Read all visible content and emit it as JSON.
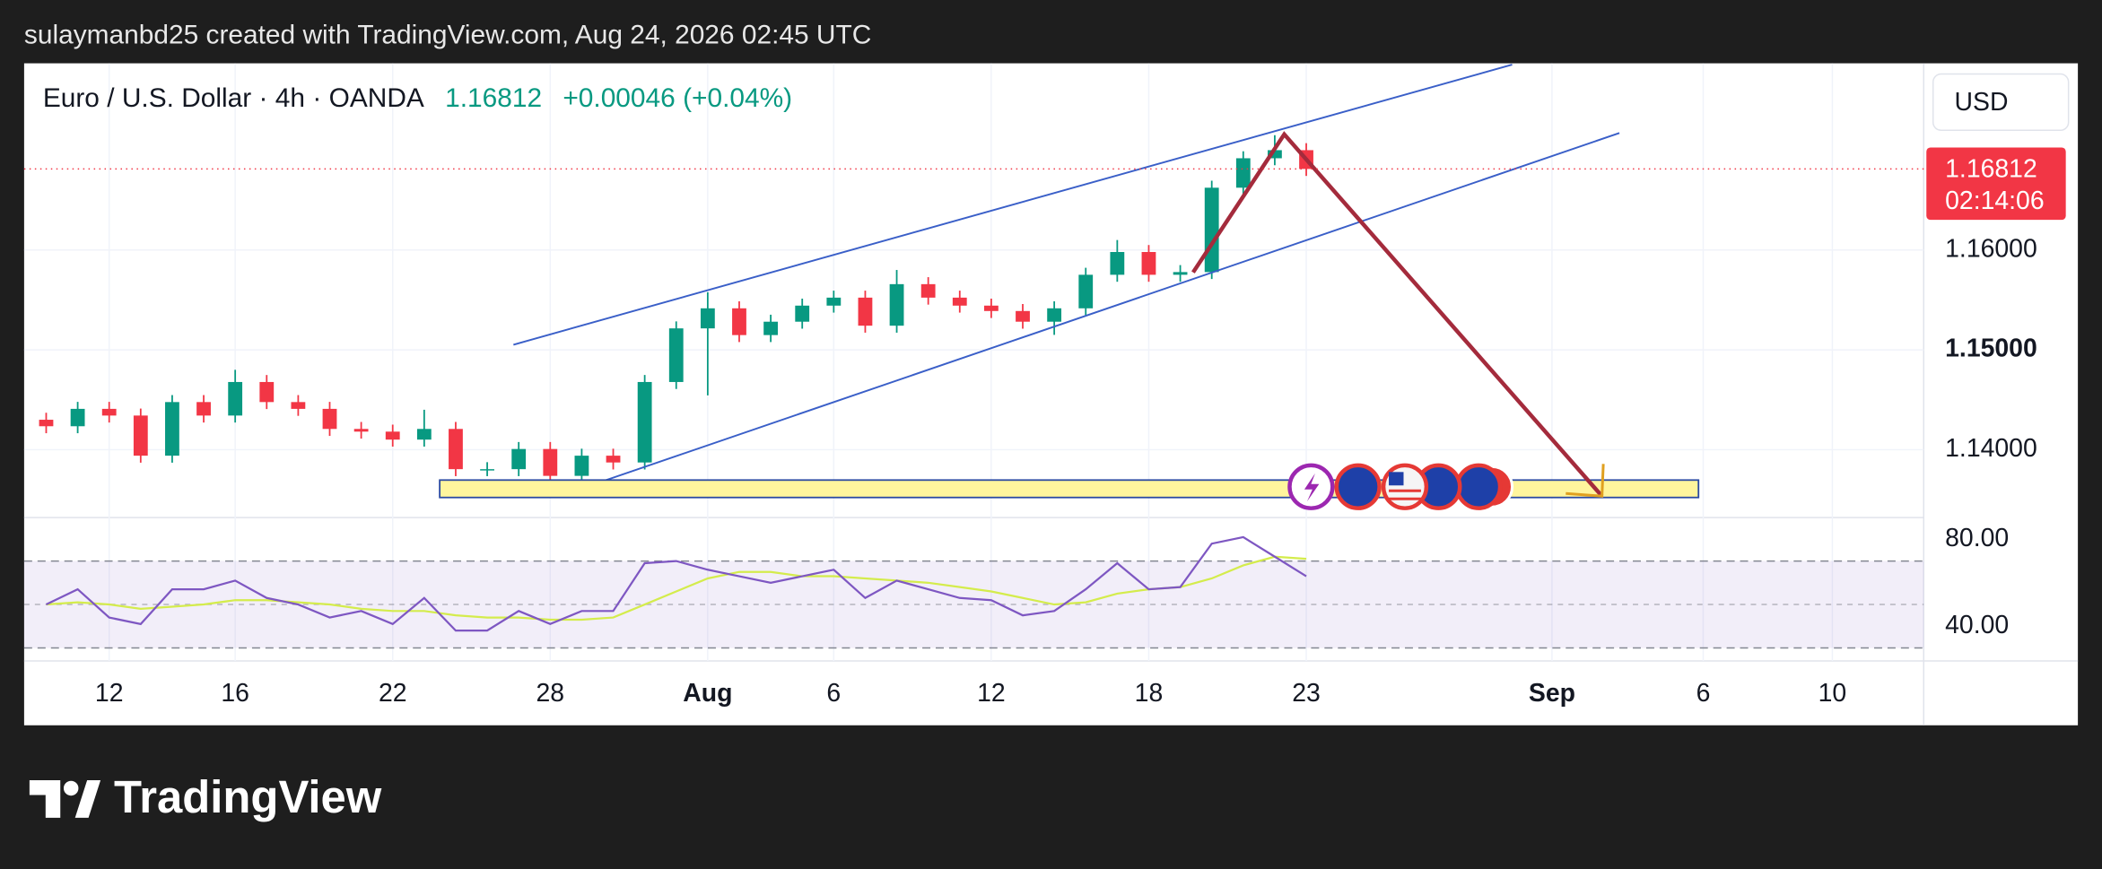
{
  "header": {
    "text": "sulaymanbd25 created with TradingView.com, Aug 24, 2026 02:45 UTC"
  },
  "chart_data": {
    "type": "candlestick",
    "title": "Euro / U.S. Dollar · 4h · OANDA",
    "change": "+0.00046 (+0.04%)",
    "currency": "USD",
    "countdown": "02:14:06",
    "x": [
      -2,
      -1,
      0,
      1,
      2,
      3,
      4,
      5,
      6,
      7,
      8,
      9,
      10,
      11,
      12,
      13,
      14,
      15,
      16,
      17,
      18,
      19,
      20,
      21,
      22,
      23,
      24,
      25,
      26,
      27,
      28,
      29,
      30,
      31,
      32,
      33,
      34,
      35,
      36,
      37,
      38
    ],
    "open": [
      1.143,
      1.14235,
      1.14409,
      1.14342,
      1.1394,
      1.14477,
      1.14342,
      1.14678,
      1.14477,
      1.14409,
      1.14208,
      1.14181,
      1.14101,
      1.14208,
      1.13805,
      1.13805,
      1.14007,
      1.13738,
      1.1394,
      1.13872,
      1.14678,
      1.15215,
      1.15416,
      1.15148,
      1.15282,
      1.15443,
      1.15523,
      1.15242,
      1.15658,
      1.15523,
      1.15443,
      1.15389,
      1.15282,
      1.15416,
      1.15752,
      1.1598,
      1.15752,
      1.15779,
      1.16624,
      1.16919,
      1.17
    ],
    "high": [
      1.1437,
      1.14479,
      1.14479,
      1.14412,
      1.14547,
      1.14547,
      1.148,
      1.14748,
      1.14547,
      1.14479,
      1.14278,
      1.14251,
      1.144,
      1.14278,
      1.13875,
      1.14077,
      1.14077,
      1.1401,
      1.1401,
      1.14748,
      1.15285,
      1.15577,
      1.15486,
      1.15352,
      1.15513,
      1.15593,
      1.15593,
      1.158,
      1.15728,
      1.15593,
      1.15513,
      1.15459,
      1.15486,
      1.15822,
      1.161,
      1.1605,
      1.15849,
      1.16694,
      1.16989,
      1.1715,
      1.1707
    ],
    "low": [
      1.14165,
      1.14165,
      1.14272,
      1.1387,
      1.1387,
      1.14272,
      1.14272,
      1.14407,
      1.14339,
      1.14138,
      1.14111,
      1.14031,
      1.14031,
      1.13735,
      1.13735,
      1.13735,
      1.13668,
      1.13668,
      1.13802,
      1.13802,
      1.14608,
      1.14544,
      1.15078,
      1.15078,
      1.15212,
      1.15373,
      1.15172,
      1.15172,
      1.15453,
      1.15373,
      1.15319,
      1.15212,
      1.1515,
      1.15346,
      1.15682,
      1.15682,
      1.15682,
      1.15709,
      1.16554,
      1.16849,
      1.16742
    ],
    "close": [
      1.14235,
      1.14409,
      1.14342,
      1.1394,
      1.14477,
      1.14342,
      1.14678,
      1.14477,
      1.14409,
      1.14208,
      1.14181,
      1.14101,
      1.14208,
      1.13805,
      1.13805,
      1.14007,
      1.13738,
      1.1394,
      1.13872,
      1.14678,
      1.15215,
      1.15416,
      1.15148,
      1.15282,
      1.15443,
      1.15523,
      1.15242,
      1.15658,
      1.15523,
      1.15443,
      1.15389,
      1.15282,
      1.15416,
      1.15752,
      1.1598,
      1.15752,
      1.15779,
      1.16624,
      1.16919,
      1.17,
      1.16812
    ],
    "up_color": "#089981",
    "down_color": "#f23645",
    "xlim": [
      -2.7,
      57.6
    ],
    "xticks": [
      {
        "value": 0,
        "label": "12"
      },
      {
        "value": 4,
        "label": "16"
      },
      {
        "value": 9,
        "label": "22"
      },
      {
        "value": 14,
        "label": "28"
      },
      {
        "value": 19,
        "label": "Aug"
      },
      {
        "value": 23,
        "label": "6"
      },
      {
        "value": 28,
        "label": "12"
      },
      {
        "value": 33,
        "label": "18"
      },
      {
        "value": 38,
        "label": "23"
      },
      {
        "value": 45.8,
        "label": "Sep"
      },
      {
        "value": 50.6,
        "label": "6"
      },
      {
        "value": 54.7,
        "label": "10"
      }
    ],
    "ylim": [
      1.1332,
      1.1787
    ],
    "yticks": [
      {
        "value": 1.14,
        "label": "1.14000"
      },
      {
        "value": 1.15,
        "label": "1.15000"
      },
      {
        "value": 1.16,
        "label": "1.16000"
      }
    ],
    "grid": true,
    "rsi_values": [
      50,
      57,
      44,
      41,
      57,
      57,
      61,
      53,
      50,
      44,
      47,
      41,
      53,
      38,
      38,
      47,
      41,
      47,
      47,
      69,
      70,
      66,
      63,
      60,
      63,
      66,
      53,
      61,
      57,
      53,
      52,
      45,
      47,
      57,
      69,
      57,
      58,
      78,
      81,
      72,
      63
    ],
    "rsi_ma": [
      50,
      51,
      50,
      48,
      49,
      50,
      52,
      52,
      51,
      50,
      48,
      47,
      47,
      45,
      44,
      44,
      43,
      43,
      44,
      50,
      56,
      62,
      65,
      65,
      63,
      63,
      62,
      61,
      60,
      58,
      56,
      53,
      50,
      51,
      55,
      57,
      58,
      62,
      68,
      72,
      71
    ],
    "rsi_color": "#7e57c2",
    "rsi_ma_color": "#d4ec4c",
    "rsi_ylim": [
      24,
      90
    ],
    "rsi_yticks": [
      {
        "value": 40,
        "label": "40.00"
      },
      {
        "value": 80,
        "label": "80.00"
      }
    ],
    "rsi_levels": [
      30,
      50,
      70
    ]
  },
  "footer": {
    "brand": "TradingView"
  }
}
